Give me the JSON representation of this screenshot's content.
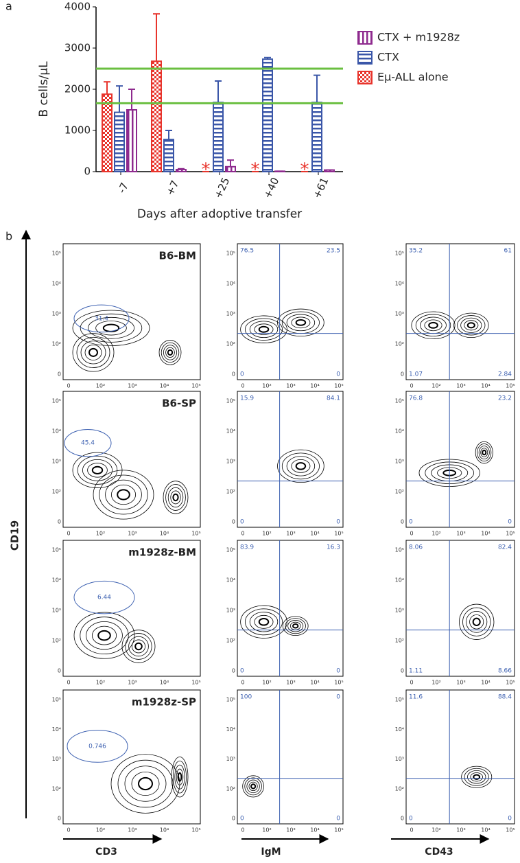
{
  "chart_data": {
    "type": "bar",
    "panel_label": "a",
    "y_label": "B cells/µL",
    "x_label": "Days after adoptive transfer",
    "categories": [
      "-7",
      "+7",
      "+25",
      "+40",
      "+61"
    ],
    "ylim": [
      0,
      4000
    ],
    "yticks": [
      0,
      1000,
      2000,
      3000,
      4000
    ],
    "series": [
      {
        "name": "Eµ-ALL alone",
        "color": "#e8342c",
        "pattern": "checker",
        "values": [
          1880,
          2680,
          0,
          0,
          0
        ],
        "errors": [
          300,
          1150,
          0,
          0,
          0
        ]
      },
      {
        "name": "CTX",
        "color": "#3a56a8",
        "pattern": "horizontal",
        "values": [
          1440,
          780,
          1680,
          2730,
          1680
        ],
        "errors": [
          640,
          220,
          520,
          40,
          660
        ]
      },
      {
        "name": "CTX + m1928z",
        "color": "#8e2a8e",
        "pattern": "vertical",
        "values": [
          1500,
          50,
          120,
          10,
          40
        ],
        "errors": [
          500,
          20,
          160,
          0,
          0
        ]
      }
    ],
    "legend_order": [
      "CTX + m1928z",
      "CTX",
      "Eµ-ALL alone"
    ],
    "reference_lines": [
      2500,
      1660
    ],
    "reference_color": "#6abf40",
    "annotations": [
      {
        "text": "*",
        "category": "+25",
        "series": "Eµ-ALL alone"
      },
      {
        "text": "*",
        "category": "+40",
        "series": "Eµ-ALL alone"
      },
      {
        "text": "*",
        "category": "+61",
        "series": "Eµ-ALL alone"
      }
    ]
  },
  "flow": {
    "panel_label": "b",
    "y_axis": "CD19",
    "x_axes": [
      "CD3",
      "IgM",
      "CD43"
    ],
    "y_ticks": [
      "10⁵",
      "10⁴",
      "10³",
      "10²",
      "0"
    ],
    "x_ticks": [
      "0",
      "10²",
      "10³",
      "10⁴",
      "10⁵"
    ],
    "rows": [
      {
        "sample": "B6-BM",
        "gate": "31.4",
        "igm": [
          "76.5",
          "23.5",
          "0",
          "0"
        ],
        "cd43": [
          "35.2",
          "61",
          "1.07",
          "2.84"
        ]
      },
      {
        "sample": "B6-SP",
        "gate": "45.4",
        "igm": [
          "15.9",
          "84.1",
          "0",
          "0"
        ],
        "cd43": [
          "76.8",
          "23.2",
          "0",
          "0"
        ]
      },
      {
        "sample": "m1928z-BM",
        "gate": "6.44",
        "igm": [
          "83.9",
          "16.3",
          "0",
          "0"
        ],
        "cd43": [
          "8.06",
          "82.4",
          "1.11",
          "8.66"
        ]
      },
      {
        "sample": "m1928z-SP",
        "gate": "0.746",
        "igm": [
          "100",
          "0",
          "0",
          "0"
        ],
        "cd43": [
          "11.6",
          "88.4",
          "0",
          "0"
        ]
      }
    ]
  }
}
